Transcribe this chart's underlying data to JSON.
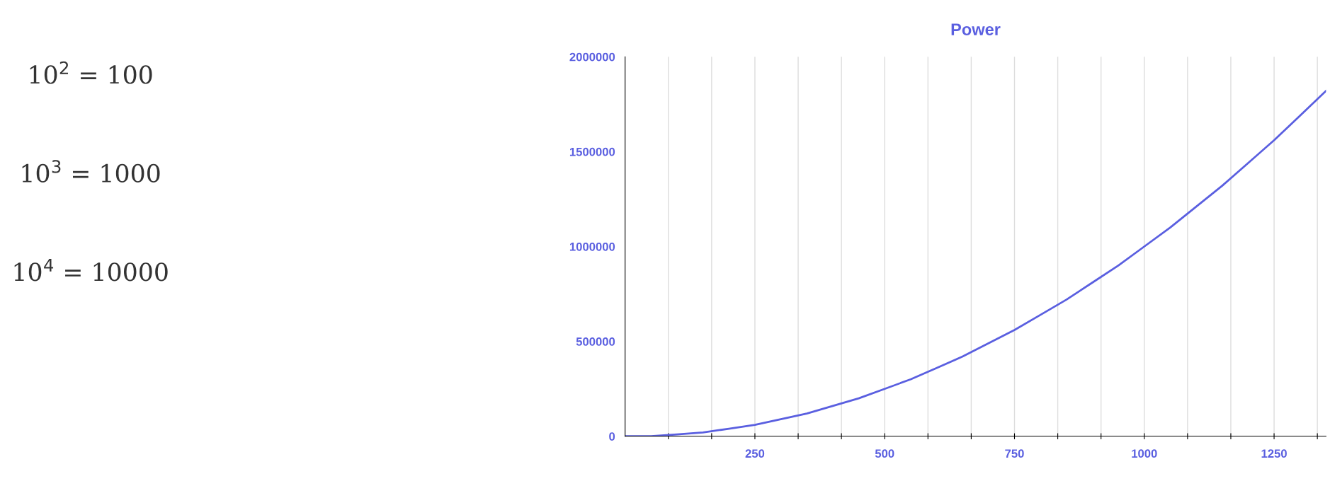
{
  "chart_data": {
    "type": "line",
    "title": "Power",
    "annotations": [
      "10$^{2}$ = 100",
      "10$^{3}$ = 1000",
      "10$^{4}$ = 10000"
    ],
    "x": [
      0,
      50,
      100,
      150,
      200,
      250,
      300,
      350,
      400,
      450,
      500,
      550,
      600,
      650,
      700,
      750,
      800,
      850,
      900,
      950,
      1000,
      1050,
      1100,
      1150,
      1200,
      1250,
      1300,
      1350
    ],
    "series": [
      {
        "color": "#5a5fe0",
        "values": [
          0,
          0,
          10000,
          20000,
          40000,
          60000,
          90000,
          120000,
          160000,
          200000,
          250000,
          300000,
          360000,
          420000,
          490000,
          560000,
          640000,
          720000,
          810000,
          900000,
          1000000,
          1100000,
          1210000,
          1320000,
          1440000,
          1560000,
          1690000,
          1820000
        ]
      }
    ],
    "xlim": [
      0,
      1350
    ],
    "xticks": [
      {
        "value": 83.33,
        "label": null
      },
      {
        "value": 166.67,
        "label": null
      },
      250,
      {
        "value": 333.33,
        "label": null
      },
      {
        "value": 416.67,
        "label": null
      },
      500,
      {
        "value": 583.33,
        "label": null
      },
      {
        "value": 666.67,
        "label": null
      },
      750,
      {
        "value": 833.33,
        "label": null
      },
      {
        "value": 916.67,
        "label": null
      },
      1000,
      {
        "value": 1083.33,
        "label": null
      },
      {
        "value": 1166.67,
        "label": null
      },
      1250,
      {
        "value": 1333.33,
        "label": null
      }
    ],
    "ylim": [
      0,
      2000000
    ],
    "yticks": [
      0,
      500000,
      1000000,
      1500000,
      2000000
    ],
    "grid": "x",
    "legend": false,
    "marker": "none",
    "line_style": "solid"
  }
}
